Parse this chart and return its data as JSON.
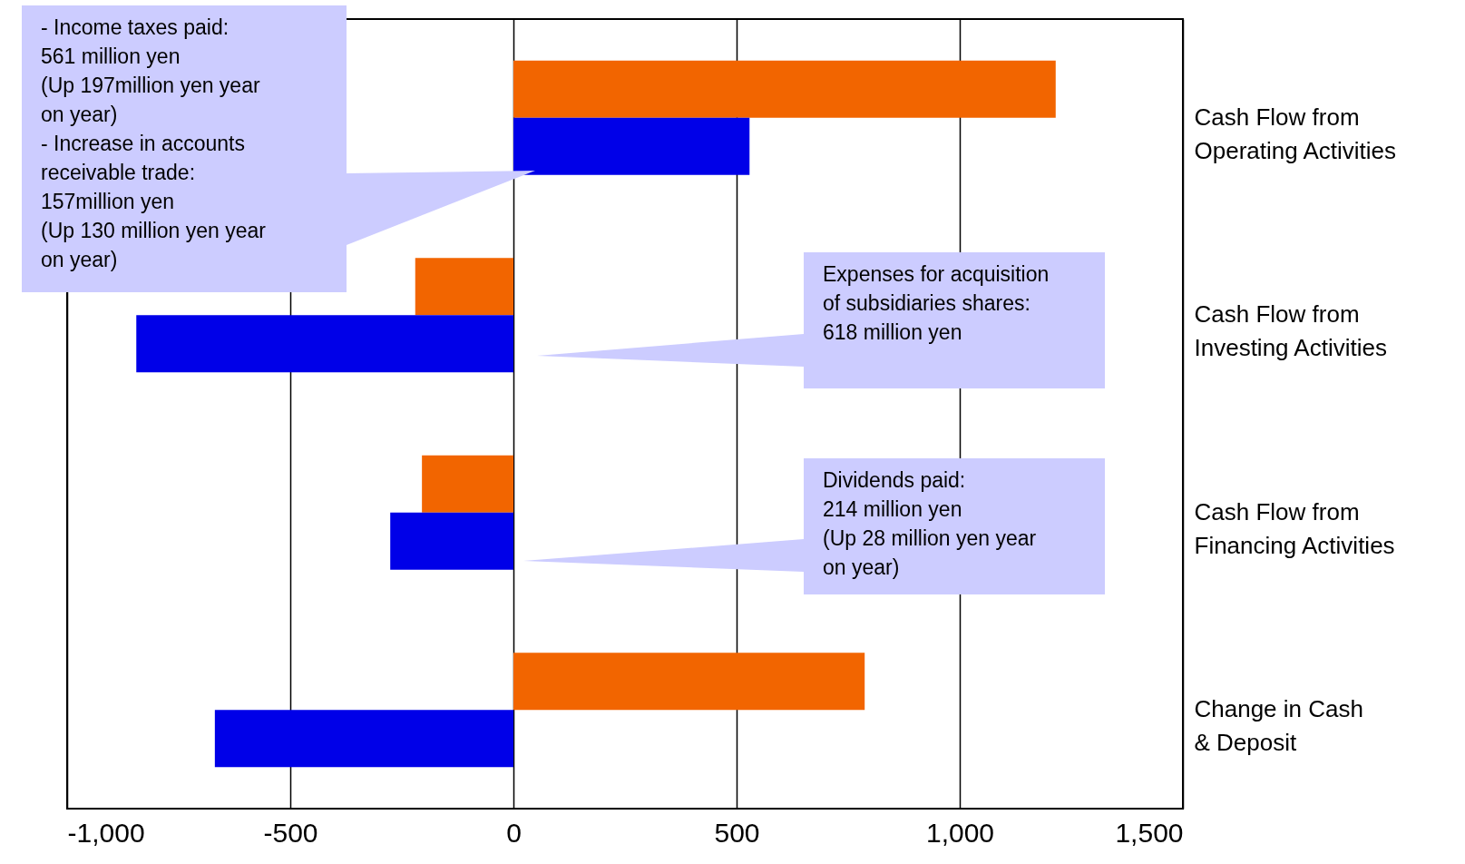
{
  "chart_data": {
    "type": "bar",
    "orientation": "horizontal",
    "categories": [
      "Cash Flow from\nOperating Activities",
      "Cash Flow from\nInvesting Activities",
      "Cash Flow from\nFinancing Activities",
      "Change in Cash\n& Deposit"
    ],
    "series": [
      {
        "color": "#f26500",
        "values": [
          1215,
          -220,
          -205,
          787
        ]
      },
      {
        "color": "#0000e8",
        "values": [
          529,
          -845,
          -276,
          -669
        ]
      }
    ],
    "xlim": [
      -1000,
      1500
    ],
    "xticks": [
      {
        "value": -1000,
        "label": "-1,000"
      },
      {
        "value": -500,
        "label": "-500"
      },
      0,
      500,
      {
        "value": 1000,
        "label": "1,000"
      },
      {
        "value": 1500,
        "label": "1,500"
      }
    ],
    "grid": "x",
    "annotations": [
      "- Income taxes paid:\n561 million yen\n(Up 197million yen year\non year)\n- Increase in accounts\nreceivable trade:\n157million yen\n(Up 130 million yen year\non year)",
      "Expenses for acquisition\nof subsidiaries shares:\n618 million yen",
      "Dividends paid:\n214 million yen\n(Up 28 million yen year\non year)"
    ]
  }
}
